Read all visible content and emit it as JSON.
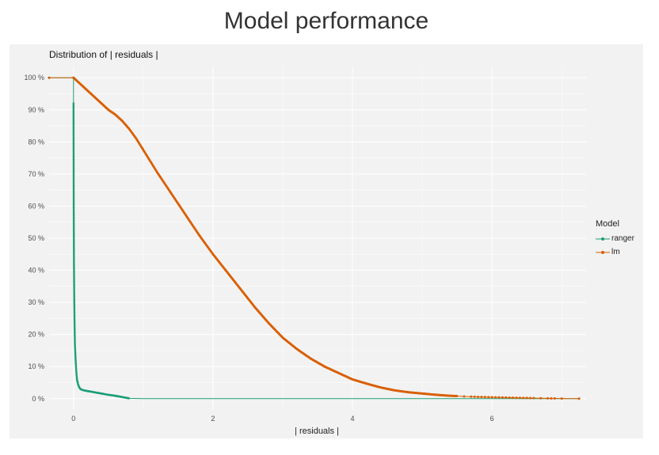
{
  "title": "Model performance",
  "chart_data": {
    "type": "line",
    "subtitle": "Distribution of | residuals |",
    "xlabel": "| residuals |",
    "ylabel": "",
    "xlim": [
      -0.35,
      7.35
    ],
    "ylim": [
      -3.5,
      103.5
    ],
    "x_ticks": [
      0,
      2,
      4,
      6
    ],
    "x_tick_labels": [
      "0",
      "2",
      "4",
      "6"
    ],
    "y_ticks": [
      0,
      10,
      20,
      30,
      40,
      50,
      60,
      70,
      80,
      90,
      100
    ],
    "y_tick_labels": [
      "0 %",
      "10 %",
      "20 %",
      "30 %",
      "40 %",
      "50 %",
      "60 %",
      "70 %",
      "80 %",
      "90 %",
      "100 %"
    ],
    "grid": true,
    "legend_title": "Model",
    "legend_position": "right",
    "series": [
      {
        "name": "ranger",
        "color": "#1b9e77",
        "x": [
          -0.35,
          0,
          0,
          0.003,
          0.006,
          0.01,
          0.015,
          0.02,
          0.03,
          0.04,
          0.05,
          0.065,
          0.08,
          0.1,
          0.13,
          0.17,
          0.22,
          0.3,
          0.4,
          0.5,
          0.6,
          0.7,
          0.8,
          1.0,
          2.0,
          4.0,
          6.0,
          7.25
        ],
        "y": [
          100,
          100,
          92,
          60,
          43,
          32,
          23,
          17,
          12,
          8.5,
          6,
          4.5,
          3.6,
          3,
          2.7,
          2.5,
          2.3,
          2,
          1.6,
          1.2,
          0.9,
          0.5,
          0.1,
          0,
          0,
          0,
          0,
          0
        ]
      },
      {
        "name": "lm",
        "color": "#d95f02",
        "x": [
          -0.35,
          0,
          0.05,
          0.1,
          0.2,
          0.3,
          0.4,
          0.5,
          0.6,
          0.7,
          0.8,
          0.9,
          1.0,
          1.1,
          1.2,
          1.4,
          1.6,
          1.8,
          2.0,
          2.2,
          2.4,
          2.6,
          2.8,
          3.0,
          3.2,
          3.4,
          3.6,
          3.8,
          4.0,
          4.2,
          4.4,
          4.6,
          4.8,
          5.0,
          5.2,
          5.4,
          5.6,
          5.8,
          6.0,
          6.2,
          6.4,
          6.6,
          6.8,
          7.0,
          7.25
        ],
        "y": [
          100,
          100,
          99,
          98,
          96,
          94,
          92,
          90,
          88.5,
          86.5,
          84,
          81,
          77.5,
          74,
          70.5,
          64,
          57.5,
          51,
          45,
          39.5,
          34,
          28.5,
          23.5,
          19,
          15.5,
          12.5,
          10,
          8,
          6,
          4.7,
          3.5,
          2.6,
          2.0,
          1.6,
          1.2,
          0.9,
          0.7,
          0.55,
          0.45,
          0.35,
          0.25,
          0.18,
          0.1,
          0.05,
          0.02
        ]
      }
    ]
  }
}
